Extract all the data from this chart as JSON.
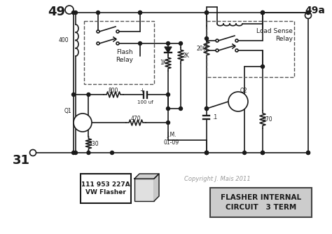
{
  "bg_color": "#ffffff",
  "line_color": "#1a1a1a",
  "copyright": "Copyright J. Mais 2011",
  "box_label": "FLASHER INTERNAL\nCIRCUIT   3 TERM",
  "flasher_label": "111 953 227A\nVW Flasher",
  "node_49_label": "49",
  "node_49a_label": "49a",
  "node_31_label": "31",
  "flash_relay_label": "Flash\nRelay",
  "load_sense_label": "Load Sense\nRelay",
  "jm_label": "J.M.\n01-09",
  "fig_w": 4.74,
  "fig_h": 3.34,
  "dpi": 100
}
